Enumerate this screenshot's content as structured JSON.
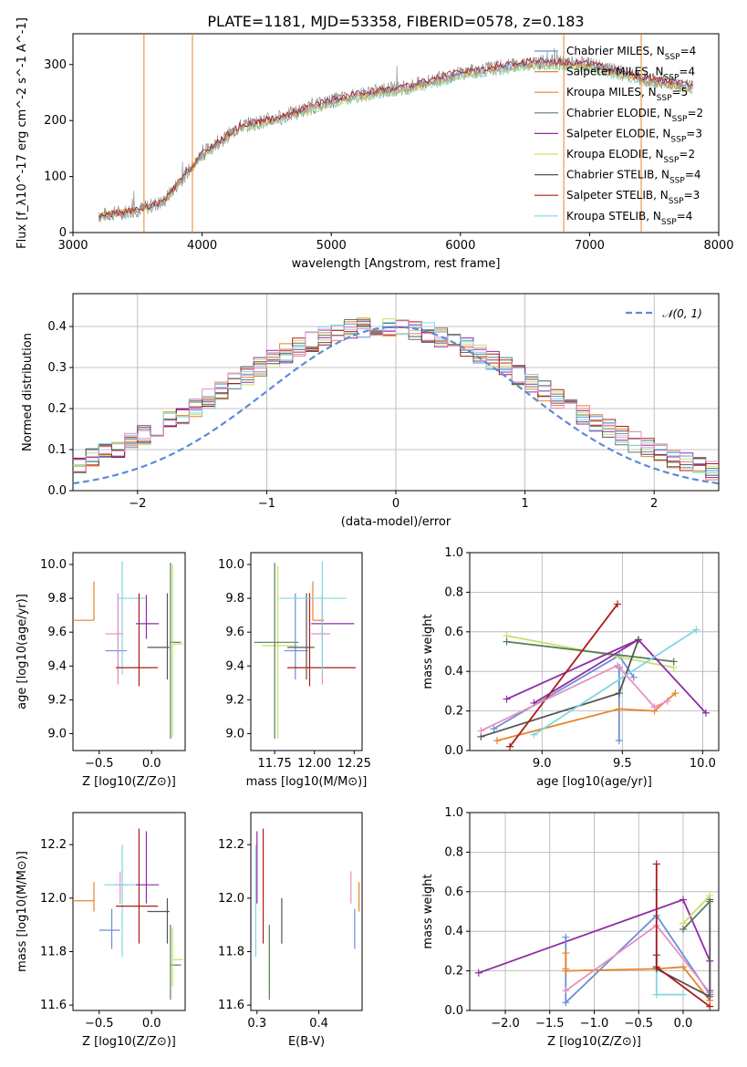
{
  "title": "PLATE=1181, MJD=53358, FIBERID=0578, z=0.183",
  "colors": {
    "Chabrier MILES": "#6a8fd8",
    "Salpeter MILES": "#e6842a",
    "Kroupa MILES": "#e6842a",
    "Chabrier ELODIE": "#5a7d5a",
    "Salpeter ELODIE": "#8e2ba5",
    "Kroupa ELODIE": "#c8e06a",
    "Chabrier STELIB": "#555555",
    "Salpeter STELIB": "#b01818",
    "Kroupa STELIB": "#7fd6e0",
    "pink": "#e890c0",
    "normal": "#5b8bd9",
    "spectrum": "#808080"
  },
  "chart_data": [
    {
      "type": "line",
      "title": "PLATE=1181, MJD=53358, FIBERID=0578, z=0.183",
      "xlabel": "wavelength [Angstrom, rest frame]",
      "ylabel": "Flux [f_λ10^-17 erg cm^-2 s^-1 A^-1]",
      "xlim": [
        3000,
        8000
      ],
      "ylim": [
        0,
        355
      ],
      "xticks": [
        "3000",
        "4000",
        "5000",
        "6000",
        "7000",
        "8000"
      ],
      "yticks": [
        "0",
        "100",
        "200",
        "300"
      ],
      "legend_position": "right",
      "legend": [
        {
          "name": "Chabrier MILES",
          "nssp": "4"
        },
        {
          "name": "Salpeter MILES",
          "nssp": "4"
        },
        {
          "name": "Kroupa MILES",
          "nssp": "5"
        },
        {
          "name": "Chabrier ELODIE",
          "nssp": "2"
        },
        {
          "name": "Salpeter ELODIE",
          "nssp": "3"
        },
        {
          "name": "Kroupa ELODIE",
          "nssp": "2"
        },
        {
          "name": "Chabrier STELIB",
          "nssp": "4"
        },
        {
          "name": "Salpeter STELIB",
          "nssp": "3"
        },
        {
          "name": "Kroupa STELIB",
          "nssp": "4"
        }
      ],
      "spectrum_envelope": {
        "x": [
          3200,
          3500,
          3700,
          4000,
          4300,
          4600,
          5000,
          5300,
          5600,
          6000,
          6300,
          6600,
          7000,
          7400,
          7800
        ],
        "y": [
          30,
          40,
          55,
          140,
          190,
          205,
          235,
          250,
          260,
          285,
          295,
          305,
          300,
          275,
          260
        ]
      }
    },
    {
      "type": "line",
      "xlabel": "(data-model)/error",
      "ylabel": "Normed distribution",
      "xlim": [
        -2.5,
        2.5
      ],
      "ylim": [
        0,
        0.48
      ],
      "xticks": [
        "−2",
        "−1",
        "0",
        "1",
        "2"
      ],
      "yticks": [
        "0.0",
        "0.1",
        "0.2",
        "0.3",
        "0.4"
      ],
      "grid": true,
      "legend_position": "top-right",
      "legend": [
        "N(0,1)"
      ],
      "normal": {
        "mean": 0,
        "sigma": 1
      }
    },
    {
      "type": "scatter",
      "xlabel": "Z [log10(Z/Z⊙)]",
      "ylabel": "age [log10(age/yr)]",
      "xlim": [
        -0.75,
        0.32
      ],
      "ylim": [
        8.9,
        10.07
      ],
      "xticks": [
        "−0.5",
        "0.0"
      ],
      "yticks": [
        "9.0",
        "9.2",
        "9.4",
        "9.6",
        "9.8",
        "10.0"
      ],
      "points": [
        {
          "x": -0.55,
          "y": 9.67,
          "xerr": [
            0.2,
            0
          ],
          "yerr": [
            0,
            0.23
          ],
          "color": "Kroupa MILES"
        },
        {
          "x": -0.32,
          "y": 9.49,
          "xerr": [
            0.12,
            0.08
          ],
          "yerr": [
            0.17,
            0.34
          ],
          "color": "Chabrier MILES"
        },
        {
          "x": -0.32,
          "y": 9.59,
          "xerr": [
            0.12,
            0.05
          ],
          "yerr": [
            0.3,
            0.24
          ],
          "color": "pink"
        },
        {
          "x": -0.28,
          "y": 9.8,
          "xerr": [
            0.05,
            0.22
          ],
          "yerr": [
            0.45,
            0.22
          ],
          "color": "Kroupa STELIB"
        },
        {
          "x": -0.12,
          "y": 9.39,
          "xerr": [
            0.22,
            0.18
          ],
          "yerr": [
            0.11,
            0.44
          ],
          "color": "Salpeter STELIB"
        },
        {
          "x": -0.05,
          "y": 9.65,
          "xerr": [
            0.1,
            0.12
          ],
          "yerr": [
            0.09,
            0.17
          ],
          "color": "Salpeter ELODIE"
        },
        {
          "x": 0.15,
          "y": 9.51,
          "xerr": [
            0.19,
            0.02
          ],
          "yerr": [
            0.19,
            0.32
          ],
          "color": "Chabrier STELIB"
        },
        {
          "x": 0.18,
          "y": 9.54,
          "xerr": [
            0.0,
            0.1
          ],
          "yerr": [
            0.57,
            0.47
          ],
          "color": "Chabrier ELODIE"
        },
        {
          "x": 0.2,
          "y": 9.53,
          "xerr": [
            0.0,
            0.1
          ],
          "yerr": [
            0.55,
            0.47
          ],
          "color": "Kroupa ELODIE"
        }
      ]
    },
    {
      "type": "scatter",
      "xlabel": "mass [log10(M/M⊙)]",
      "xlim": [
        11.6,
        12.3
      ],
      "ylim": [
        8.9,
        10.07
      ],
      "xticks": [
        "11.75",
        "12.00",
        "12.25"
      ],
      "yticks": [
        "9.0",
        "9.2",
        "9.4",
        "9.6",
        "9.8",
        "10.0"
      ],
      "points": [
        {
          "x": 11.77,
          "y": 9.52,
          "xerr": [
            0.1,
            0.12
          ],
          "yerr": [
            0.55,
            0.47
          ],
          "color": "Kroupa ELODIE"
        },
        {
          "x": 11.75,
          "y": 9.54,
          "xerr": [
            0.13,
            0.15
          ],
          "yerr": [
            0.57,
            0.47
          ],
          "color": "Chabrier ELODIE"
        },
        {
          "x": 11.88,
          "y": 9.49,
          "xerr": [
            0.07,
            0.08
          ],
          "yerr": [
            0.17,
            0.34
          ],
          "color": "Chabrier MILES"
        },
        {
          "x": 11.95,
          "y": 9.51,
          "xerr": [
            0.12,
            0.05
          ],
          "yerr": [
            0.19,
            0.32
          ],
          "color": "Chabrier STELIB"
        },
        {
          "x": 11.99,
          "y": 9.67,
          "xerr": [
            0.0,
            0.07
          ],
          "yerr": [
            0,
            0.23
          ],
          "color": "Kroupa MILES"
        },
        {
          "x": 12.05,
          "y": 9.59,
          "xerr": [
            0.07,
            0.05
          ],
          "yerr": [
            0.3,
            0.24
          ],
          "color": "pink"
        },
        {
          "x": 11.97,
          "y": 9.39,
          "xerr": [
            0.14,
            0.29
          ],
          "yerr": [
            0.11,
            0.44
          ],
          "color": "Salpeter STELIB"
        },
        {
          "x": 12.05,
          "y": 9.65,
          "xerr": [
            0.07,
            0.2
          ],
          "yerr": [
            0.09,
            0.17
          ],
          "color": "Salpeter ELODIE"
        },
        {
          "x": 12.05,
          "y": 9.8,
          "xerr": [
            0.27,
            0.15
          ],
          "yerr": [
            0.45,
            0.22
          ],
          "color": "Kroupa STELIB"
        }
      ]
    },
    {
      "type": "line",
      "xlabel": "age [log10(age/yr)]",
      "ylabel": "mass weight",
      "xlim": [
        8.55,
        10.1
      ],
      "ylim": [
        0,
        1
      ],
      "xticks": [
        "9.0",
        "9.5",
        "10.0"
      ],
      "yticks": [
        "0.0",
        "0.2",
        "0.4",
        "0.6",
        "0.8",
        "1.0"
      ],
      "grid": true,
      "series": [
        {
          "color": "Chabrier MILES",
          "x": [
            8.7,
            9.48,
            9.57
          ],
          "y": [
            0.11,
            0.48,
            0.37
          ]
        },
        {
          "color": "Chabrier MILES",
          "x": [
            9.48,
            9.48
          ],
          "y": [
            0.05,
            0.42
          ]
        },
        {
          "color": "Salpeter MILES",
          "x": [
            8.72,
            9.48,
            9.7,
            9.83
          ],
          "y": [
            0.05,
            0.21,
            0.2,
            0.29
          ]
        },
        {
          "color": "Kroupa ELODIE",
          "x": [
            8.78,
            9.82
          ],
          "y": [
            0.58,
            0.42
          ]
        },
        {
          "color": "Chabrier ELODIE",
          "x": [
            8.78,
            9.82
          ],
          "y": [
            0.55,
            0.45
          ]
        },
        {
          "color": "Salpeter ELODIE",
          "x": [
            8.78,
            9.6,
            10.02
          ],
          "y": [
            0.26,
            0.56,
            0.19
          ]
        },
        {
          "color": "Salpeter ELODIE",
          "x": [
            9.6,
            8.95
          ],
          "y": [
            0.56,
            0.24
          ]
        },
        {
          "color": "Chabrier STELIB",
          "x": [
            8.62,
            9.48,
            9.6
          ],
          "y": [
            0.07,
            0.29,
            0.56
          ]
        },
        {
          "color": "Salpeter STELIB",
          "x": [
            8.8,
            9.47
          ],
          "y": [
            0.02,
            0.74
          ]
        },
        {
          "color": "Kroupa STELIB",
          "x": [
            8.95,
            9.96
          ],
          "y": [
            0.08,
            0.61
          ]
        },
        {
          "color": "pink",
          "x": [
            8.62,
            9.47,
            9.7,
            9.78
          ],
          "y": [
            0.1,
            0.43,
            0.22,
            0.25
          ]
        }
      ]
    },
    {
      "type": "scatter",
      "xlabel": "Z [log10(Z/Z⊙)]",
      "ylabel": "mass [log10(M/M⊙)]",
      "xlim": [
        -0.75,
        0.32
      ],
      "ylim": [
        11.58,
        12.32
      ],
      "xticks": [
        "−0.5",
        "0.0"
      ],
      "yticks": [
        "11.6",
        "11.8",
        "12.0",
        "12.2"
      ],
      "points": [
        {
          "x": -0.55,
          "y": 11.99,
          "xerr": [
            0.2,
            0
          ],
          "yerr": [
            0.04,
            0.07
          ],
          "color": "Kroupa MILES"
        },
        {
          "x": -0.38,
          "y": 11.88,
          "xerr": [
            0.12,
            0.08
          ],
          "yerr": [
            0.07,
            0.08
          ],
          "color": "Chabrier MILES"
        },
        {
          "x": -0.3,
          "y": 12.05,
          "xerr": [
            0.05,
            0.07
          ],
          "yerr": [
            0.07,
            0.05
          ],
          "color": "pink"
        },
        {
          "x": -0.28,
          "y": 12.05,
          "xerr": [
            0.17,
            0.22
          ],
          "yerr": [
            0.27,
            0.15
          ],
          "color": "Kroupa STELIB"
        },
        {
          "x": -0.12,
          "y": 11.97,
          "xerr": [
            0.22,
            0.18
          ],
          "yerr": [
            0.14,
            0.29
          ],
          "color": "Salpeter STELIB"
        },
        {
          "x": -0.05,
          "y": 12.05,
          "xerr": [
            0.1,
            0.12
          ],
          "yerr": [
            0.07,
            0.2
          ],
          "color": "Salpeter ELODIE"
        },
        {
          "x": 0.15,
          "y": 11.95,
          "xerr": [
            0.19,
            0.02
          ],
          "yerr": [
            0.12,
            0.05
          ],
          "color": "Chabrier STELIB"
        },
        {
          "x": 0.18,
          "y": 11.75,
          "xerr": [
            0.0,
            0.1
          ],
          "yerr": [
            0.13,
            0.15
          ],
          "color": "Chabrier ELODIE"
        },
        {
          "x": 0.2,
          "y": 11.77,
          "xerr": [
            0.0,
            0.1
          ],
          "yerr": [
            0.1,
            0.12
          ],
          "color": "Kroupa ELODIE"
        }
      ]
    },
    {
      "type": "scatter",
      "xlabel": "E(B-V)",
      "xlim": [
        0.29,
        0.47
      ],
      "ylim": [
        11.58,
        12.32
      ],
      "xticks": [
        "0.3",
        "0.4"
      ],
      "yticks": [
        "11.6",
        "11.8",
        "12.0",
        "12.2"
      ],
      "points": [
        {
          "x": 0.298,
          "y": 12.05,
          "yerr": [
            0.27,
            0.15
          ],
          "color": "Kroupa STELIB"
        },
        {
          "x": 0.3,
          "y": 12.05,
          "yerr": [
            0.07,
            0.2
          ],
          "color": "Salpeter ELODIE"
        },
        {
          "x": 0.31,
          "y": 11.97,
          "yerr": [
            0.14,
            0.29
          ],
          "color": "Salpeter STELIB"
        },
        {
          "x": 0.32,
          "y": 11.77,
          "yerr": [
            0.1,
            0.12
          ],
          "color": "Kroupa ELODIE"
        },
        {
          "x": 0.32,
          "y": 11.75,
          "yerr": [
            0.13,
            0.15
          ],
          "color": "Chabrier ELODIE"
        },
        {
          "x": 0.34,
          "y": 11.95,
          "yerr": [
            0.12,
            0.05
          ],
          "color": "Chabrier STELIB"
        },
        {
          "x": 0.452,
          "y": 12.05,
          "yerr": [
            0.07,
            0.05
          ],
          "color": "pink"
        },
        {
          "x": 0.458,
          "y": 11.88,
          "yerr": [
            0.07,
            0.08
          ],
          "color": "Chabrier MILES"
        },
        {
          "x": 0.465,
          "y": 11.99,
          "yerr": [
            0.04,
            0.07
          ],
          "color": "Kroupa MILES"
        }
      ]
    },
    {
      "type": "line",
      "xlabel": "Z [log10(Z/Z⊙)]",
      "ylabel": "mass weight",
      "xlim": [
        -2.4,
        0.4
      ],
      "ylim": [
        0,
        1
      ],
      "xticks": [
        "−2.0",
        "−1.5",
        "−1.0",
        "−0.5",
        "0.0"
      ],
      "yticks": [
        "0.0",
        "0.2",
        "0.4",
        "0.6",
        "0.8",
        "1.0"
      ],
      "grid": true,
      "series": [
        {
          "color": "Salpeter ELODIE",
          "x": [
            -2.3,
            0.0,
            0.3,
            0.3
          ],
          "y": [
            0.19,
            0.56,
            0.25,
            0.1
          ]
        },
        {
          "color": "Chabrier MILES",
          "x": [
            -1.32,
            -1.32,
            -0.3,
            0.3
          ],
          "y": [
            0.37,
            0.04,
            0.48,
            0.08
          ]
        },
        {
          "color": "Salpeter MILES",
          "x": [
            -1.32,
            -0.3,
            0.0,
            0.3
          ],
          "y": [
            0.2,
            0.21,
            0.22,
            0.05
          ]
        },
        {
          "color": "Salpeter MILES",
          "x": [
            -1.32,
            -1.32
          ],
          "y": [
            0.21,
            0.29
          ]
        },
        {
          "color": "pink",
          "x": [
            -1.32,
            -0.3,
            0.3
          ],
          "y": [
            0.1,
            0.43,
            0.09
          ]
        },
        {
          "color": "Kroupa STELIB",
          "x": [
            -0.3,
            -0.3,
            0.0
          ],
          "y": [
            0.61,
            0.08,
            0.08
          ]
        },
        {
          "color": "Chabrier STELIB",
          "x": [
            -0.3,
            -0.3,
            0.3,
            0.3
          ],
          "y": [
            0.28,
            0.21,
            0.07,
            0.56
          ]
        },
        {
          "color": "Salpeter STELIB",
          "x": [
            -0.3,
            -0.3,
            0.3
          ],
          "y": [
            0.74,
            0.22,
            0.02
          ]
        },
        {
          "color": "Kroupa ELODIE",
          "x": [
            0.0,
            0.3
          ],
          "y": [
            0.44,
            0.58
          ]
        },
        {
          "color": "Chabrier ELODIE",
          "x": [
            0.0,
            0.3
          ],
          "y": [
            0.41,
            0.55
          ]
        }
      ]
    }
  ]
}
